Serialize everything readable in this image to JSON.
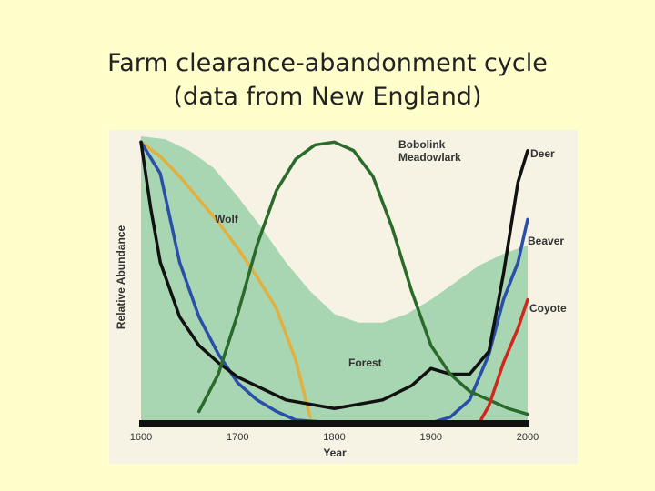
{
  "chart_data": {
    "type": "line",
    "title": "Farm clearance-abandonment cycle",
    "subtitle": "(data from New England)",
    "x_label": "Year",
    "y_label": "Relative Abundance",
    "xlim": [
      1600,
      2000
    ],
    "xticks": [
      1600,
      1700,
      1800,
      1900,
      2000
    ],
    "ylim": [
      0,
      100
    ],
    "series": [
      {
        "name": "Forest",
        "kind": "area",
        "color": "#a9d6b2",
        "x": [
          1600,
          1625,
          1650,
          1675,
          1700,
          1725,
          1750,
          1775,
          1800,
          1825,
          1850,
          1875,
          1900,
          1925,
          1950,
          1975,
          2000
        ],
        "values": [
          100,
          99,
          95,
          89,
          79,
          68,
          56,
          46,
          38,
          35,
          35,
          38,
          43,
          49,
          55,
          59,
          62
        ]
      },
      {
        "name": "Wolf",
        "kind": "line",
        "color": "#e0b040",
        "x": [
          1600,
          1620,
          1640,
          1660,
          1680,
          1700,
          1720,
          1740,
          1760,
          1775
        ],
        "values": [
          98,
          93,
          86,
          78,
          70,
          61,
          51,
          40,
          22,
          2
        ]
      },
      {
        "name": "Beaver",
        "kind": "line",
        "color": "#2a4fa8",
        "x": [
          1600,
          1620,
          1640,
          1660,
          1680,
          1700,
          1720,
          1740,
          1760,
          1800,
          1900,
          1920,
          1940,
          1960,
          1975,
          1990,
          2000
        ],
        "values": [
          98,
          87,
          56,
          37,
          24,
          14,
          8,
          4,
          1,
          0,
          0,
          2,
          8,
          24,
          43,
          56,
          71
        ]
      },
      {
        "name": "Deer",
        "kind": "line",
        "color": "#111111",
        "x": [
          1600,
          1610,
          1620,
          1640,
          1660,
          1680,
          1700,
          1750,
          1800,
          1850,
          1880,
          1900,
          1920,
          1940,
          1960,
          1975,
          1990,
          2000
        ],
        "values": [
          98,
          75,
          56,
          37,
          27,
          21,
          16,
          8,
          5,
          8,
          13,
          19,
          17,
          17,
          25,
          52,
          84,
          95
        ]
      },
      {
        "name": "Bobolink Meadowlark",
        "kind": "line",
        "color": "#2a6a2a",
        "x": [
          1660,
          1680,
          1700,
          1720,
          1740,
          1760,
          1780,
          1800,
          1820,
          1840,
          1860,
          1880,
          1900,
          1920,
          1940,
          1960,
          1980,
          2000
        ],
        "values": [
          4,
          17,
          38,
          62,
          81,
          92,
          97,
          98,
          95,
          86,
          68,
          46,
          27,
          17,
          11,
          8,
          5,
          3
        ]
      },
      {
        "name": "Coyote",
        "kind": "line",
        "color": "#d0281c",
        "x": [
          1950,
          1960,
          1975,
          1990,
          2000
        ],
        "values": [
          0,
          6,
          21,
          33,
          43
        ]
      }
    ]
  }
}
